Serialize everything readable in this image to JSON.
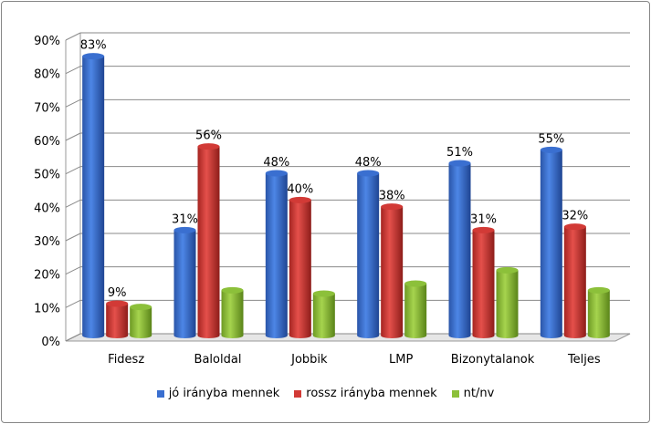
{
  "chart_data": {
    "type": "bar",
    "categories": [
      "Fidesz",
      "Baloldal",
      "Jobbik",
      "LMP",
      "Bizonytalanok",
      "Teljes"
    ],
    "series": [
      {
        "name": "jó irányba mennek",
        "values": [
          83,
          31,
          48,
          48,
          51,
          55
        ],
        "color": "#3a6fd0",
        "labels": [
          "83%",
          "31%",
          "48%",
          "48%",
          "51%",
          "55%"
        ]
      },
      {
        "name": "rossz irányba mennek",
        "values": [
          9,
          56,
          40,
          38,
          31,
          32
        ],
        "color": "#d23a36",
        "labels": [
          "9%",
          "56%",
          "40%",
          "38%",
          "31%",
          "32%"
        ]
      },
      {
        "name": "nt/nv",
        "values": [
          8,
          13,
          12,
          15,
          19,
          13
        ],
        "color": "#8cc03a",
        "labels": []
      }
    ],
    "yticks": [
      "0%",
      "10%",
      "20%",
      "30%",
      "40%",
      "50%",
      "60%",
      "70%",
      "80%",
      "90%"
    ],
    "ylim": [
      0,
      90
    ],
    "grid": true,
    "legend": "bottom",
    "style": "3d-cylinder"
  }
}
